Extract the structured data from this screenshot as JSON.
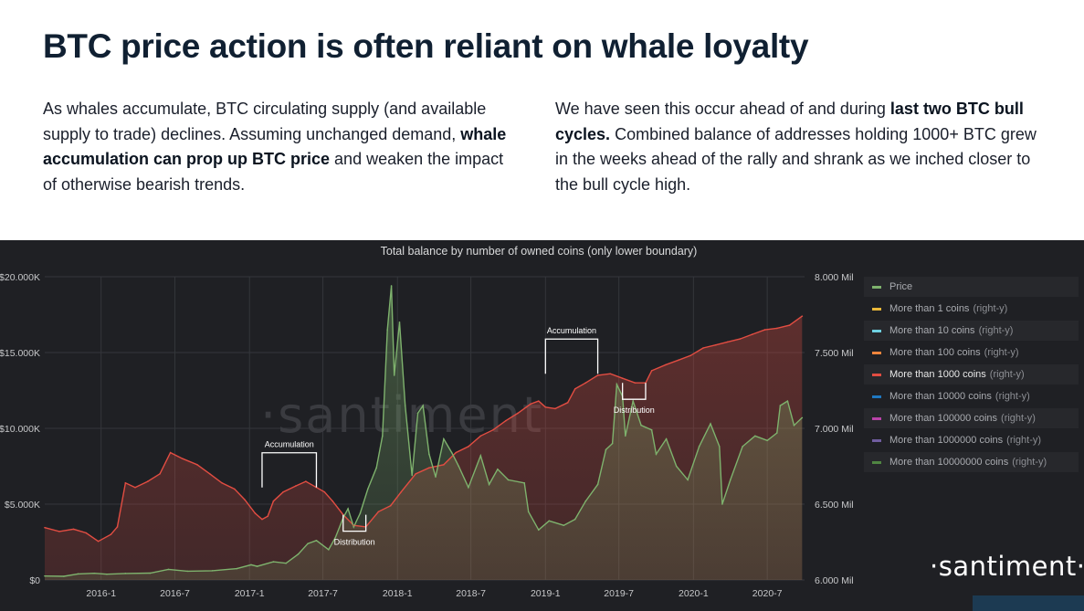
{
  "headline": "BTC price action is often reliant on whale loyalty",
  "left_paragraph": [
    {
      "text": "As whales accumulate, BTC circulating supply (and available supply to trade) declines. Assuming unchanged demand, ",
      "bold": false
    },
    {
      "text": "whale accumulation can prop up BTC price",
      "bold": true
    },
    {
      "text": " and weaken the impact of otherwise bearish trends.",
      "bold": false
    }
  ],
  "right_paragraph": [
    {
      "text": "We have seen this occur ahead of and during ",
      "bold": false
    },
    {
      "text": "last two BTC bull cycles.",
      "bold": true
    },
    {
      "text": " Combined balance of addresses holding 1000+ BTC grew in the weeks ahead of the rally and shrank as we inched closer to the bull cycle high.",
      "bold": false
    }
  ],
  "logo_text": "·santiment·",
  "watermark_text": "·santiment",
  "colors": {
    "panel_bg": "#1f2024",
    "price": "#7eb26d",
    "whale": "#e24d42",
    "grid": "#34363b"
  },
  "chart_data": {
    "type": "line",
    "title": "Total balance by number of owned coins (only lower boundary)",
    "xlim": [
      "2015-08-15",
      "2020-10-01"
    ],
    "x_ticks": [
      {
        "date": "2016-01-01",
        "label": "2016-1"
      },
      {
        "date": "2016-07-01",
        "label": "2016-7"
      },
      {
        "date": "2017-01-01",
        "label": "2017-1"
      },
      {
        "date": "2017-07-01",
        "label": "2017-7"
      },
      {
        "date": "2018-01-01",
        "label": "2018-1"
      },
      {
        "date": "2018-07-01",
        "label": "2018-7"
      },
      {
        "date": "2019-01-01",
        "label": "2019-1"
      },
      {
        "date": "2019-07-01",
        "label": "2019-7"
      },
      {
        "date": "2020-01-01",
        "label": "2020-1"
      },
      {
        "date": "2020-07-01",
        "label": "2020-7"
      }
    ],
    "y_left": {
      "min": 0,
      "max": 20000,
      "ticks": [
        0,
        5000,
        10000,
        15000,
        20000
      ],
      "tick_labels": [
        "$0",
        "$5.000K",
        "$10.000K",
        "$15.000K",
        "$20.000K"
      ]
    },
    "y_right": {
      "min": 6000000,
      "max": 8000000,
      "ticks": [
        6000000,
        6500000,
        7000000,
        7500000,
        8000000
      ],
      "tick_labels": [
        "6.000 Mil",
        "6.500 Mil",
        "7.000 Mil",
        "7.500 Mil",
        "8.000 Mil"
      ]
    },
    "grid": true,
    "legend_position": "right",
    "legend": [
      {
        "name": "Price",
        "suffix": "",
        "color": "#7eb26d",
        "active": false
      },
      {
        "name": "More than 1 coins",
        "suffix": "(right-y)",
        "color": "#eab839",
        "active": false
      },
      {
        "name": "More than 10 coins",
        "suffix": "(right-y)",
        "color": "#6ed0e0",
        "active": false
      },
      {
        "name": "More than 100 coins",
        "suffix": "(right-y)",
        "color": "#ef843c",
        "active": false
      },
      {
        "name": "More than 1000 coins",
        "suffix": "(right-y)",
        "color": "#e24d42",
        "active": true
      },
      {
        "name": "More than 10000 coins",
        "suffix": "(right-y)",
        "color": "#1f78c1",
        "active": false
      },
      {
        "name": "More than 100000 coins",
        "suffix": "(right-y)",
        "color": "#ba43a9",
        "active": false
      },
      {
        "name": "More than 1000000 coins",
        "suffix": "(right-y)",
        "color": "#705da0",
        "active": false
      },
      {
        "name": "More than 10000000 coins",
        "suffix": "(right-y)",
        "color": "#508642",
        "active": false
      }
    ],
    "series": [
      {
        "name": "Price",
        "axis": "left",
        "points": [
          [
            "2015-08-15",
            260
          ],
          [
            "2015-10-01",
            240
          ],
          [
            "2015-11-05",
            400
          ],
          [
            "2015-12-15",
            440
          ],
          [
            "2016-01-15",
            380
          ],
          [
            "2016-03-01",
            430
          ],
          [
            "2016-05-01",
            450
          ],
          [
            "2016-06-15",
            700
          ],
          [
            "2016-08-01",
            580
          ],
          [
            "2016-10-01",
            610
          ],
          [
            "2016-12-01",
            750
          ],
          [
            "2017-01-05",
            1000
          ],
          [
            "2017-01-20",
            900
          ],
          [
            "2017-03-01",
            1200
          ],
          [
            "2017-04-01",
            1100
          ],
          [
            "2017-05-01",
            1700
          ],
          [
            "2017-05-25",
            2400
          ],
          [
            "2017-06-15",
            2600
          ],
          [
            "2017-07-15",
            2000
          ],
          [
            "2017-08-01",
            2800
          ],
          [
            "2017-08-20",
            4100
          ],
          [
            "2017-09-01",
            4700
          ],
          [
            "2017-09-15",
            3500
          ],
          [
            "2017-10-01",
            4400
          ],
          [
            "2017-10-20",
            6000
          ],
          [
            "2017-11-10",
            7400
          ],
          [
            "2017-11-25",
            9500
          ],
          [
            "2017-12-07",
            16500
          ],
          [
            "2017-12-17",
            19400
          ],
          [
            "2017-12-24",
            13500
          ],
          [
            "2018-01-06",
            17000
          ],
          [
            "2018-01-20",
            11500
          ],
          [
            "2018-02-06",
            6900
          ],
          [
            "2018-02-20",
            11000
          ],
          [
            "2018-03-05",
            11500
          ],
          [
            "2018-03-20",
            8300
          ],
          [
            "2018-04-05",
            6800
          ],
          [
            "2018-04-25",
            9300
          ],
          [
            "2018-05-15",
            8400
          ],
          [
            "2018-06-01",
            7500
          ],
          [
            "2018-06-25",
            6100
          ],
          [
            "2018-07-25",
            8200
          ],
          [
            "2018-08-15",
            6300
          ],
          [
            "2018-09-05",
            7300
          ],
          [
            "2018-10-01",
            6600
          ],
          [
            "2018-11-10",
            6400
          ],
          [
            "2018-11-20",
            4500
          ],
          [
            "2018-12-15",
            3300
          ],
          [
            "2019-01-10",
            3900
          ],
          [
            "2019-02-15",
            3600
          ],
          [
            "2019-03-15",
            4000
          ],
          [
            "2019-04-10",
            5200
          ],
          [
            "2019-05-10",
            6300
          ],
          [
            "2019-05-30",
            8600
          ],
          [
            "2019-06-15",
            9000
          ],
          [
            "2019-06-26",
            12900
          ],
          [
            "2019-07-10",
            12100
          ],
          [
            "2019-07-17",
            9500
          ],
          [
            "2019-08-05",
            11800
          ],
          [
            "2019-08-25",
            10200
          ],
          [
            "2019-09-20",
            9900
          ],
          [
            "2019-10-01",
            8300
          ],
          [
            "2019-10-26",
            9300
          ],
          [
            "2019-11-20",
            7500
          ],
          [
            "2019-12-18",
            6600
          ],
          [
            "2020-01-15",
            8800
          ],
          [
            "2020-02-12",
            10300
          ],
          [
            "2020-03-05",
            8800
          ],
          [
            "2020-03-12",
            5000
          ],
          [
            "2020-04-01",
            6600
          ],
          [
            "2020-05-01",
            8800
          ],
          [
            "2020-06-01",
            9500
          ],
          [
            "2020-07-01",
            9200
          ],
          [
            "2020-07-25",
            9700
          ],
          [
            "2020-08-02",
            11500
          ],
          [
            "2020-08-20",
            11800
          ],
          [
            "2020-09-05",
            10200
          ],
          [
            "2020-09-25",
            10700
          ]
        ]
      },
      {
        "name": "More than 1000 coins",
        "axis": "right",
        "points": [
          [
            "2015-08-15",
            6345000
          ],
          [
            "2015-09-20",
            6320000
          ],
          [
            "2015-10-25",
            6335000
          ],
          [
            "2015-11-25",
            6310000
          ],
          [
            "2015-12-25",
            6255000
          ],
          [
            "2016-01-25",
            6300000
          ],
          [
            "2016-02-10",
            6350000
          ],
          [
            "2016-03-01",
            6640000
          ],
          [
            "2016-03-25",
            6610000
          ],
          [
            "2016-04-25",
            6650000
          ],
          [
            "2016-05-25",
            6700000
          ],
          [
            "2016-06-20",
            6840000
          ],
          [
            "2016-07-20",
            6800000
          ],
          [
            "2016-08-25",
            6760000
          ],
          [
            "2016-09-25",
            6700000
          ],
          [
            "2016-10-25",
            6640000
          ],
          [
            "2016-11-25",
            6600000
          ],
          [
            "2016-12-20",
            6530000
          ],
          [
            "2017-01-15",
            6440000
          ],
          [
            "2017-02-01",
            6400000
          ],
          [
            "2017-02-15",
            6420000
          ],
          [
            "2017-03-01",
            6520000
          ],
          [
            "2017-03-25",
            6580000
          ],
          [
            "2017-04-25",
            6620000
          ],
          [
            "2017-05-20",
            6650000
          ],
          [
            "2017-06-15",
            6610000
          ],
          [
            "2017-07-05",
            6580000
          ],
          [
            "2017-07-25",
            6520000
          ],
          [
            "2017-08-20",
            6430000
          ],
          [
            "2017-09-15",
            6360000
          ],
          [
            "2017-10-15",
            6350000
          ],
          [
            "2017-11-15",
            6450000
          ],
          [
            "2017-12-15",
            6490000
          ],
          [
            "2018-01-10",
            6580000
          ],
          [
            "2018-02-15",
            6700000
          ],
          [
            "2018-03-20",
            6740000
          ],
          [
            "2018-04-25",
            6760000
          ],
          [
            "2018-05-25",
            6840000
          ],
          [
            "2018-06-25",
            6880000
          ],
          [
            "2018-07-25",
            6950000
          ],
          [
            "2018-08-25",
            6990000
          ],
          [
            "2018-09-25",
            7050000
          ],
          [
            "2018-10-25",
            7100000
          ],
          [
            "2018-11-25",
            7160000
          ],
          [
            "2018-12-15",
            7180000
          ],
          [
            "2019-01-01",
            7140000
          ],
          [
            "2019-01-25",
            7130000
          ],
          [
            "2019-02-25",
            7170000
          ],
          [
            "2019-03-15",
            7260000
          ],
          [
            "2019-04-10",
            7300000
          ],
          [
            "2019-05-10",
            7350000
          ],
          [
            "2019-06-10",
            7360000
          ],
          [
            "2019-07-10",
            7330000
          ],
          [
            "2019-08-10",
            7300000
          ],
          [
            "2019-09-05",
            7300000
          ],
          [
            "2019-09-20",
            7380000
          ],
          [
            "2019-10-25",
            7420000
          ],
          [
            "2019-11-25",
            7450000
          ],
          [
            "2019-12-25",
            7480000
          ],
          [
            "2020-01-25",
            7530000
          ],
          [
            "2020-02-25",
            7550000
          ],
          [
            "2020-03-25",
            7570000
          ],
          [
            "2020-04-25",
            7590000
          ],
          [
            "2020-05-25",
            7620000
          ],
          [
            "2020-06-25",
            7650000
          ],
          [
            "2020-07-25",
            7660000
          ],
          [
            "2020-08-25",
            7680000
          ],
          [
            "2020-09-25",
            7740000
          ]
        ]
      }
    ],
    "annotations": [
      {
        "label": "Accumulation",
        "start": "2017-02-01",
        "end": "2017-06-15",
        "level": 6610000
      },
      {
        "label": "Distribution",
        "start": "2017-08-20",
        "end": "2017-10-15",
        "level": 6430000
      },
      {
        "label": "Accumulation",
        "start": "2019-01-01",
        "end": "2019-05-10",
        "level": 7360000
      },
      {
        "label": "Distribution",
        "start": "2019-07-10",
        "end": "2019-09-05",
        "level": 7300000
      }
    ]
  }
}
